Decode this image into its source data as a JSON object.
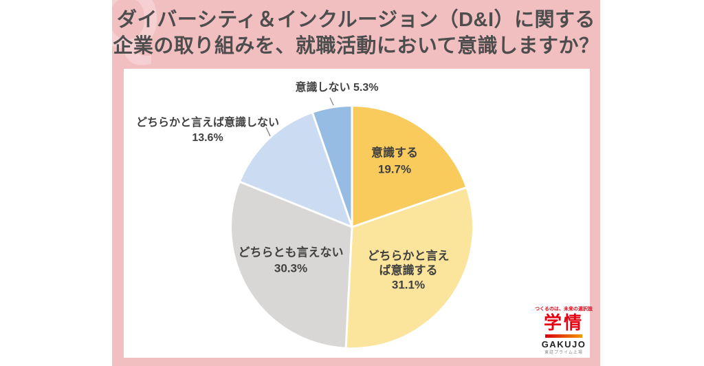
{
  "title": {
    "line1": "ダイバーシティ＆インクルージョン（D&I）に関する",
    "line2": "企業の取り組みを、就職活動において意識しますか？"
  },
  "watermark": "Q",
  "chart_data": {
    "type": "pie",
    "title": "ダイバーシティ＆インクルージョン（D&I）に関する企業の取り組みを、就職活動において意識しますか？",
    "unit": "%",
    "start_angle_deg": 0,
    "direction": "clockwise",
    "total": 100.0,
    "slices": [
      {
        "label": "意識する",
        "value": 19.7,
        "color": "#F8CB5C",
        "label_lines": [
          "意識する"
        ],
        "label_placement": "inside"
      },
      {
        "label": "どちらかと言えば意識する",
        "value": 31.1,
        "color": "#FBE49B",
        "label_lines": [
          "どちらかと言え",
          "ば意識する"
        ],
        "label_placement": "inside"
      },
      {
        "label": "どちらとも言えない",
        "value": 30.3,
        "color": "#D8D7D5",
        "label_lines": [
          "どちらとも言えない"
        ],
        "label_placement": "inside"
      },
      {
        "label": "どちらかと言えば意識しない",
        "value": 13.6,
        "color": "#CBDCF2",
        "label_lines": [
          "どちらかと言えば意識しない"
        ],
        "label_placement": "outside"
      },
      {
        "label": "意識しない",
        "value": 5.3,
        "color": "#96BCE3",
        "label_placement": "outside-inline"
      }
    ],
    "separator_color": "#FFFFFF",
    "label_text_color": "#404040",
    "leader_line_color": "#8F8F8F",
    "legend": "none"
  },
  "logo": {
    "tagline": "つくるのは、未来の選択肢",
    "name_kanji": "学情",
    "name_roman": "GAKUJO",
    "listing": "東証プライム上場",
    "brand_red": "#E60012",
    "bar_gradient": [
      "#D7000F",
      "#F39800"
    ]
  },
  "colors": {
    "page_background": "#FFFFFF",
    "card_pink": "#F2BFC1",
    "watermark_pink": "#F6CFD2",
    "title_text": "#4D4D4D"
  }
}
